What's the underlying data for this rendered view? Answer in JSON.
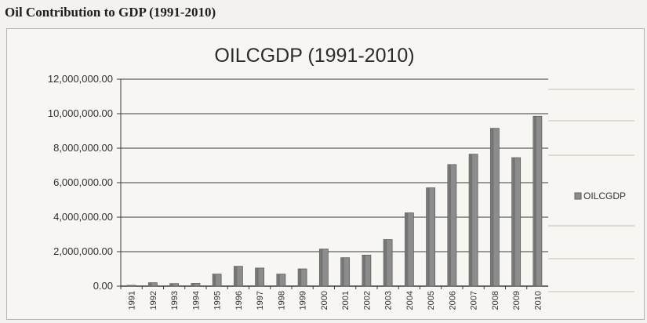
{
  "document": {
    "heading": "Oil Contribution to GDP (1991-2010)"
  },
  "chart_data": {
    "type": "bar",
    "title": "OILCGDP (1991-2010)",
    "xlabel": "",
    "ylabel": "",
    "categories": [
      "1991",
      "1992",
      "1993",
      "1994",
      "1995",
      "1996",
      "1997",
      "1998",
      "1999",
      "2000",
      "2001",
      "2002",
      "2003",
      "2004",
      "2005",
      "2006",
      "2007",
      "2008",
      "2009",
      "2010"
    ],
    "series": [
      {
        "name": "OILCGDP",
        "values": [
          50000,
          200000,
          150000,
          160000,
          700000,
          1150000,
          1050000,
          700000,
          1000000,
          2150000,
          1650000,
          1800000,
          2700000,
          4250000,
          5700000,
          7050000,
          7650000,
          9150000,
          7450000,
          9850000
        ]
      }
    ],
    "ylim": [
      0,
      12000000
    ],
    "yticks": [
      "0.00",
      "2,000,000.00",
      "4,000,000.00",
      "6,000,000.00",
      "8,000,000.00",
      "10,000,000.00",
      "12,000,000.00"
    ],
    "grid": true,
    "legend": "right",
    "colors": {
      "bar": "#8c8c8c",
      "bar_dark": "#5f5f5f",
      "grid": "#3a3a3a"
    }
  }
}
